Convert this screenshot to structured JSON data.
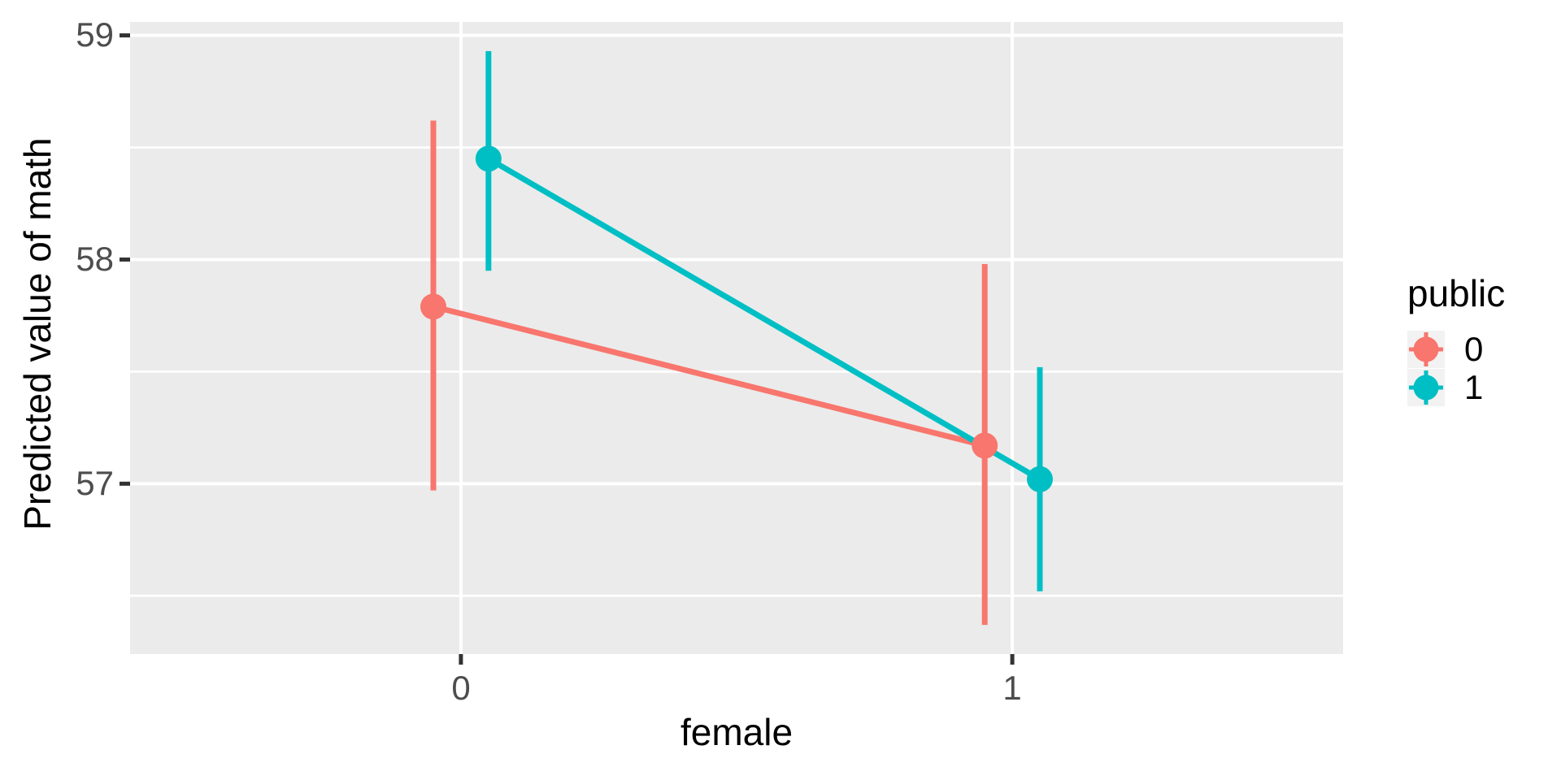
{
  "chart_data": {
    "type": "line",
    "title": "",
    "xlabel": "female",
    "ylabel": "Predicted value of math",
    "grid": true,
    "legend_position": "right",
    "legend": {
      "title": "public",
      "entries": [
        {
          "label": "0",
          "color": "#F8766D"
        },
        {
          "label": "1",
          "color": "#00BFC4"
        }
      ]
    },
    "x_ticks": [
      {
        "value": 0,
        "label": "0"
      },
      {
        "value": 1,
        "label": "1"
      }
    ],
    "y_ticks": [
      {
        "value": 57,
        "label": "57"
      },
      {
        "value": 58,
        "label": "58"
      },
      {
        "value": 59,
        "label": "59"
      }
    ],
    "y_minor_breaks": [
      56.5,
      57.5,
      58.5
    ],
    "xlim": [
      -0.6,
      1.6
    ],
    "ylim": [
      56.24,
      59.06
    ],
    "series": [
      {
        "name": "0",
        "color": "#F8766D",
        "points": [
          {
            "x": -0.05,
            "y": 57.79,
            "ymin": 56.97,
            "ymax": 58.62
          },
          {
            "x": 0.95,
            "y": 57.17,
            "ymin": 56.37,
            "ymax": 57.98
          }
        ]
      },
      {
        "name": "1",
        "color": "#00BFC4",
        "points": [
          {
            "x": 0.05,
            "y": 58.45,
            "ymin": 57.95,
            "ymax": 58.93
          },
          {
            "x": 1.05,
            "y": 57.02,
            "ymin": 56.52,
            "ymax": 57.52
          }
        ]
      }
    ],
    "colors": {
      "panel_bg": "#EBEBEB",
      "grid": "#FFFFFF",
      "tick": "#333333",
      "tick_label": "#4D4D4D",
      "title": "#000000",
      "legend_key_bg": "#F2F2F2"
    }
  }
}
